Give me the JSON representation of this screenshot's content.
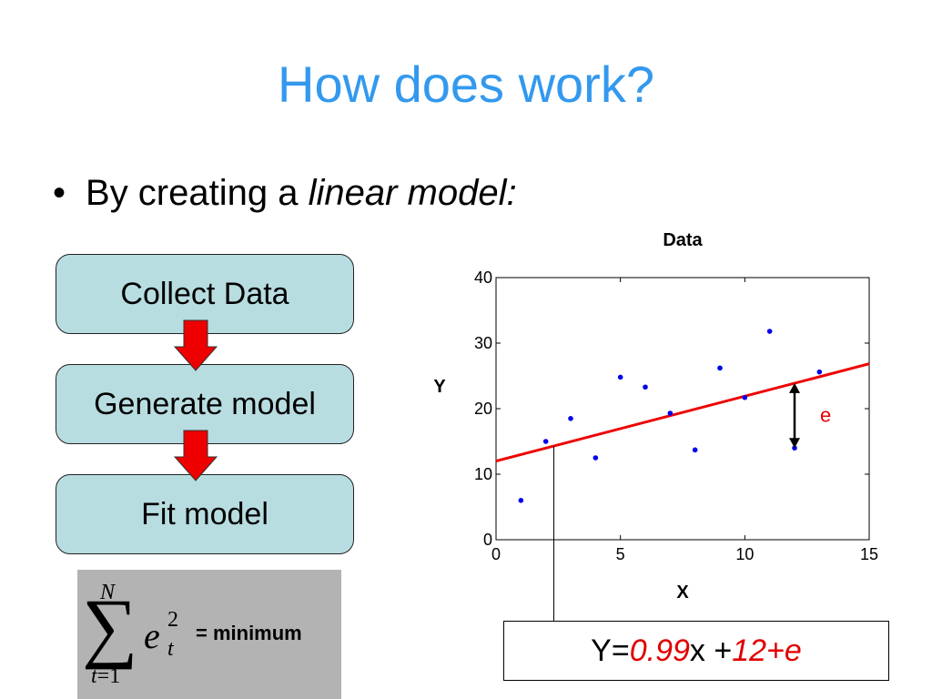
{
  "slide": {
    "title": "How does work?",
    "bullet_dot": "•",
    "bullet_text": "By creating a ",
    "bullet_italic": "linear model:"
  },
  "flow": {
    "steps": [
      "Collect Data",
      "Generate model",
      "Fit model"
    ],
    "arrow_color": "#ee0000"
  },
  "formula": {
    "upper": "N",
    "sigma": "∑",
    "term": "e",
    "power": "2",
    "subscript": "t",
    "lower_var": "t",
    "lower_rest": "=1",
    "result": "= minimum"
  },
  "equation": {
    "prefix": "Y=",
    "slope": "0.99",
    "x_part": "x + ",
    "intercept": "12",
    "plus": " + ",
    "error": "e"
  },
  "chart_data": {
    "type": "scatter",
    "title": "Data",
    "xlabel": "X",
    "ylabel": "Y",
    "xlim": [
      0,
      15
    ],
    "ylim": [
      0,
      40
    ],
    "xticks": [
      0,
      5,
      10,
      15
    ],
    "yticks": [
      0,
      10,
      20,
      30,
      40
    ],
    "points": [
      {
        "x": 1,
        "y": 6
      },
      {
        "x": 2,
        "y": 15
      },
      {
        "x": 3,
        "y": 18.5
      },
      {
        "x": 4,
        "y": 12.5
      },
      {
        "x": 5,
        "y": 24.8
      },
      {
        "x": 6,
        "y": 23.3
      },
      {
        "x": 7,
        "y": 19.3
      },
      {
        "x": 8,
        "y": 13.7
      },
      {
        "x": 9,
        "y": 26.2
      },
      {
        "x": 10,
        "y": 21.7
      },
      {
        "x": 11,
        "y": 31.8
      },
      {
        "x": 12,
        "y": 14
      },
      {
        "x": 13,
        "y": 25.6
      }
    ],
    "fit_line": {
      "slope": 0.99,
      "intercept": 12
    },
    "residual": {
      "x": 12,
      "y_from": 14,
      "y_to": 23.9,
      "label": "e"
    },
    "point_color": "#0000ee",
    "line_color": "#ee0000",
    "grid": false
  }
}
